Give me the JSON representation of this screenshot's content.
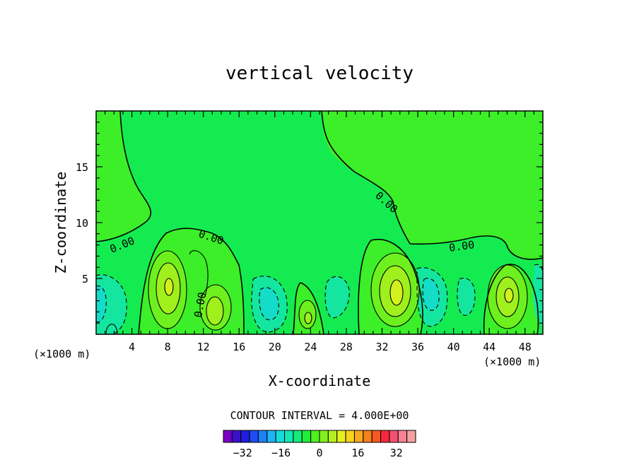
{
  "chart_data": {
    "type": "heatmap",
    "subtype": "filled-contour",
    "title": "vertical velocity",
    "xlabel": "X-coordinate",
    "ylabel": "Z-coordinate",
    "x_unit_left": "(×1000 m)",
    "x_unit_right": "(×1000 m)",
    "xlim": [
      0,
      50
    ],
    "ylim": [
      0,
      20
    ],
    "x_ticks": [
      "4",
      "8",
      "12",
      "16",
      "20",
      "24",
      "28",
      "32",
      "36",
      "40",
      "44",
      "48"
    ],
    "y_ticks": [
      "5",
      "10",
      "15"
    ],
    "contour_interval_label": "CONTOUR INTERVAL = 4.000E+00",
    "zero_labels": [
      "0.00",
      "0.00",
      "0.00",
      "0.00",
      "0.00",
      "0.00"
    ],
    "colorbar": {
      "min": -40,
      "max": 40,
      "step": 4,
      "tick_labels": [
        "−32",
        "−16",
        "0",
        "16",
        "32"
      ],
      "tick_values": [
        -32,
        -16,
        0,
        16,
        32
      ],
      "colors": [
        "#7a00c8",
        "#3a10c8",
        "#1e1ee0",
        "#1e4cf0",
        "#1e82f5",
        "#1eb4f5",
        "#14dcdc",
        "#14e6b4",
        "#14eb7a",
        "#1eef3c",
        "#50f01e",
        "#82f01e",
        "#b4f01e",
        "#e6f01e",
        "#f5d21e",
        "#f5aa1e",
        "#f5821e",
        "#f55a1e",
        "#f5283c",
        "#f5506e",
        "#f58296",
        "#f5a0a0"
      ]
    },
    "features": [
      {
        "kind": "updraft",
        "x": 8.0,
        "z": 4.2,
        "peak": 16
      },
      {
        "kind": "updraft",
        "x": 13.5,
        "z": 2.2,
        "peak": 12
      },
      {
        "kind": "updraft",
        "x": 23.5,
        "z": 1.5,
        "peak": 8
      },
      {
        "kind": "updraft",
        "x": 33.5,
        "z": 3.7,
        "peak": 16
      },
      {
        "kind": "updraft",
        "x": 46.2,
        "z": 3.2,
        "peak": 16
      },
      {
        "kind": "downdraft",
        "x": 1.5,
        "z": 3.0,
        "peak": -8
      },
      {
        "kind": "downdraft",
        "x": 3.0,
        "z": 2.5,
        "peak": -8
      },
      {
        "kind": "downdraft",
        "x": 19.5,
        "z": 2.8,
        "peak": -8
      },
      {
        "kind": "downdraft",
        "x": 26.5,
        "z": 3.0,
        "peak": -4
      },
      {
        "kind": "downdraft",
        "x": 38.0,
        "z": 3.2,
        "peak": -8
      },
      {
        "kind": "downdraft",
        "x": 41.5,
        "z": 3.0,
        "peak": -4
      },
      {
        "kind": "downdraft",
        "x": 49.5,
        "z": 3.5,
        "peak": -4
      }
    ]
  }
}
